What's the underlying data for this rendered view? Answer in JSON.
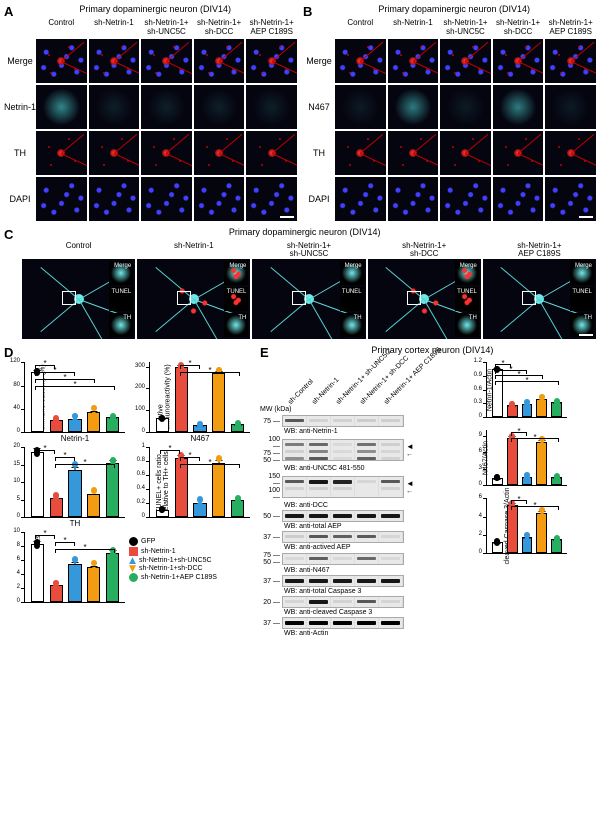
{
  "panels": {
    "A": {
      "title": "Primary dopaminergic neuron (DIV14)",
      "columns": [
        "Control",
        "sh-Netrin-1",
        "sh-Netrin-1+\nsh-UNC5C",
        "sh-Netrin-1+\nsh-DCC",
        "sh-Netrin-1+\nAEP C189S"
      ],
      "rows": [
        "Merge",
        "Netrin-1",
        "TH",
        "DAPI"
      ]
    },
    "B": {
      "title": "Primary dopaminergic neuron (DIV14)",
      "columns": [
        "Control",
        "sh-Netrin-1",
        "sh-Netrin-1+\nsh-UNC5C",
        "sh-Netrin-1+\nsh-DCC",
        "sh-Netrin-1+\nAEP C189S"
      ],
      "rows": [
        "Merge",
        "N467",
        "TH",
        "DAPI"
      ]
    },
    "C": {
      "title": "Primary dopaminergic neuron (DIV14)",
      "columns": [
        "Control",
        "sh-Netrin-1",
        "sh-Netrin-1+\nsh-UNC5C",
        "sh-Netrin-1+\nsh-DCC",
        "sh-Netrin-1+\nAEP C189S"
      ],
      "insets": [
        "Merge",
        "TUNEL",
        "TH"
      ]
    },
    "D": {
      "legend": [
        {
          "label": "GFP",
          "shape": "circle",
          "color": "#000000"
        },
        {
          "label": "sh-Netrin-1",
          "shape": "square",
          "color": "#e74c3c"
        },
        {
          "label": "sh-Netrin-1+sh-UNC5C",
          "shape": "triangle",
          "color": "#3498db"
        },
        {
          "label": "sh-Netrin-1+sh-DCC",
          "shape": "triangle-down",
          "color": "#f39c12"
        },
        {
          "label": "sh-Netrin-1+AEP C189S",
          "shape": "circle",
          "color": "#27ae60"
        }
      ],
      "charts": {
        "netrin1": {
          "title": "Netrin-1",
          "ylabel": "Relative\nimmunoreactivity (%)",
          "ylim": [
            0,
            120
          ],
          "ytick": 40,
          "values": [
            100,
            18,
            20,
            32,
            22
          ],
          "err": [
            6,
            4,
            5,
            7,
            5
          ],
          "sig": [
            [
              0,
              1
            ],
            [
              0,
              2
            ],
            [
              0,
              3
            ],
            [
              0,
              4
            ]
          ]
        },
        "n467": {
          "title": "N467",
          "ylabel": "Relative\nimmunoreactivity (%)",
          "ylim": [
            0,
            320
          ],
          "ytick": 100,
          "values": [
            55,
            290,
            25,
            260,
            28
          ],
          "err": [
            8,
            15,
            6,
            18,
            6
          ],
          "sig": [
            [
              1,
              2
            ],
            [
              1,
              4
            ]
          ]
        },
        "th": {
          "title": "TH",
          "ylabel": "TH+ cells per slice",
          "ylim": [
            0,
            20
          ],
          "ytick": 5,
          "values": [
            18,
            5,
            13,
            6,
            15
          ],
          "err": [
            1.5,
            1.2,
            1.8,
            1.3,
            1.6
          ],
          "sig": [
            [
              0,
              1
            ],
            [
              1,
              2
            ],
            [
              1,
              4
            ]
          ]
        },
        "tunel": {
          "title": "",
          "ylabel": "TUNEL+ cells ratio\nrelative to TH+ cells",
          "ylim": [
            0,
            1.0
          ],
          "ytick": 0.2,
          "values": [
            0.08,
            0.82,
            0.18,
            0.75,
            0.22
          ],
          "err": [
            0.03,
            0.06,
            0.05,
            0.07,
            0.05
          ],
          "sig": [
            [
              0,
              1
            ],
            [
              1,
              2
            ],
            [
              1,
              4
            ]
          ]
        },
        "branches": {
          "title": "",
          "ylabel": "Number of branches",
          "ylim": [
            0,
            10
          ],
          "ytick": 2,
          "values": [
            8.0,
            2.2,
            5.2,
            4.8,
            6.8
          ],
          "err": [
            0.8,
            0.5,
            0.7,
            0.6,
            0.7
          ],
          "sig": [
            [
              0,
              1
            ],
            [
              1,
              2
            ],
            [
              1,
              4
            ]
          ]
        }
      },
      "colors": [
        "#ffffff",
        "#e74c3c",
        "#3498db",
        "#f39c12",
        "#27ae60"
      ],
      "borders": [
        "#000000",
        "#000000",
        "#000000",
        "#000000",
        "#000000"
      ]
    },
    "E": {
      "title": "Primary cortex neuron (DIV14)",
      "lanes": [
        "sh-Control",
        "sh-Netrin-1",
        "sh-Netrin-1+ sh-UNC5C",
        "sh-Netrin-1+ sh-DCC",
        "sh-Netrin-1+ AEP C189S"
      ],
      "mw_title": "MW\n(kDa)",
      "blots": [
        {
          "mw": [
            "75"
          ],
          "label": "WB: anti-Netrin-1",
          "bands": [
            [
              0.6,
              0.15,
              0.18,
              0.25,
              0.2
            ]
          ],
          "tall": false
        },
        {
          "mw": [
            "100",
            "75",
            "50"
          ],
          "label": "WB: anti-UNC5C 481-550",
          "bands": [
            [
              0.4,
              0.5,
              0.05,
              0.45,
              0.2
            ],
            [
              0.2,
              0.35,
              0.03,
              0.3,
              0.1
            ],
            [
              0.3,
              0.6,
              0.05,
              0.55,
              0.15
            ]
          ],
          "tall": true,
          "arrows": true
        },
        {
          "mw": [
            "150",
            "100"
          ],
          "label": "WB: anti-DCC",
          "bands": [
            [
              0.6,
              0.7,
              0.65,
              0.1,
              0.6
            ],
            [
              0.15,
              0.2,
              0.18,
              0.02,
              0.15
            ]
          ],
          "tall": true,
          "arrows": true
        },
        {
          "mw": [
            "50"
          ],
          "label": "WB: anti-total AEP",
          "bands": [
            [
              0.7,
              0.7,
              0.7,
              0.7,
              0.7
            ]
          ],
          "tall": false
        },
        {
          "mw": [
            "37"
          ],
          "label": "WB: anti-actived AEP",
          "bands": [
            [
              0.25,
              0.6,
              0.55,
              0.58,
              0.1
            ]
          ],
          "tall": false
        },
        {
          "mw": [
            "75",
            "50"
          ],
          "label": "WB: anti-N467",
          "bands": [
            [
              0.05,
              0.55,
              0.06,
              0.5,
              0.05
            ]
          ],
          "tall": false
        },
        {
          "mw": [
            "37"
          ],
          "label": "WB: anti-total Caspase 3",
          "bands": [
            [
              0.7,
              0.7,
              0.7,
              0.7,
              0.7
            ]
          ],
          "tall": false
        },
        {
          "mw": [
            "20"
          ],
          "label": "WB: anti-cleaved Caspase 3",
          "bands": [
            [
              0.1,
              0.7,
              0.15,
              0.6,
              0.12
            ]
          ],
          "tall": false
        },
        {
          "mw": [
            "37"
          ],
          "label": "WB: anti-Actin",
          "bands": [
            [
              0.8,
              0.8,
              0.8,
              0.8,
              0.8
            ]
          ],
          "tall": false
        }
      ],
      "charts": {
        "netrin1": {
          "ylabel": "Netrin-1/Actin",
          "ylim": [
            0,
            1.2
          ],
          "ytick": 0.3,
          "values": [
            1.0,
            0.22,
            0.25,
            0.35,
            0.28
          ],
          "err": [
            0.05,
            0.04,
            0.05,
            0.06,
            0.05
          ],
          "sig": [
            [
              0,
              1
            ],
            [
              0,
              2
            ],
            [
              0,
              3
            ],
            [
              0,
              4
            ]
          ]
        },
        "n467": {
          "ylabel": "N467/Actin",
          "ylim": [
            0,
            10
          ],
          "ytick": 3,
          "values": [
            1.0,
            8.2,
            1.2,
            7.5,
            1.1
          ],
          "err": [
            0.3,
            0.6,
            0.3,
            0.7,
            0.3
          ],
          "sig": [
            [
              1,
              2
            ],
            [
              1,
              4
            ]
          ]
        },
        "caspase3": {
          "ylabel": "cleaved Caspase 3/Actin",
          "ylim": [
            0,
            6
          ],
          "ytick": 2,
          "values": [
            1.0,
            5.0,
            1.5,
            4.2,
            1.3
          ],
          "err": [
            0.2,
            0.4,
            0.3,
            0.4,
            0.25
          ],
          "sig": [
            [
              1,
              2
            ],
            [
              1,
              4
            ]
          ]
        }
      }
    }
  },
  "style": {
    "background": "#ffffff",
    "label_fontsize": 13,
    "header_fontsize": 9,
    "axis_fontsize": 7,
    "bar_colors": [
      "#ffffff",
      "#e74c3c",
      "#3498db",
      "#f39c12",
      "#27ae60"
    ],
    "sig_symbol": "*"
  }
}
